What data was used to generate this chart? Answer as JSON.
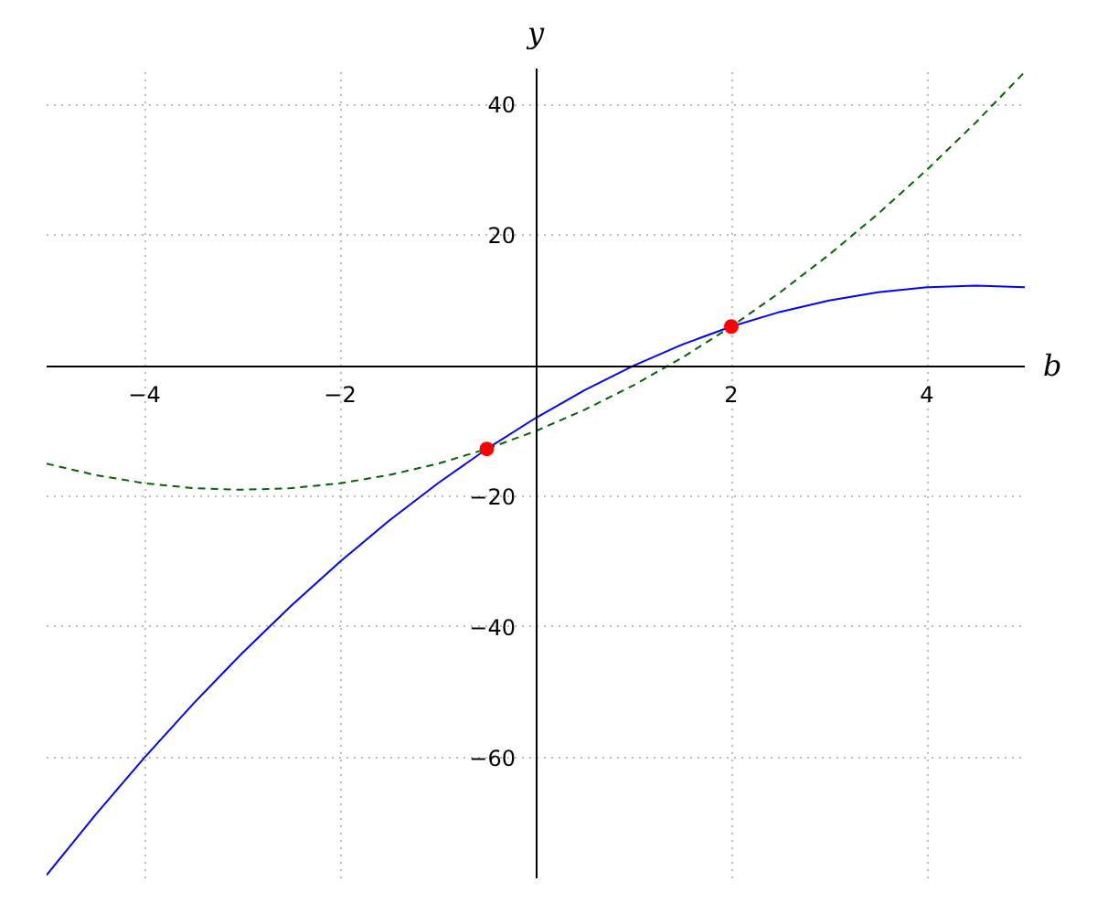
{
  "chart_data": {
    "type": "line",
    "xlabel": "b",
    "ylabel": "y",
    "xlim": [
      -5,
      5
    ],
    "ylim": [
      -78.5,
      45.5
    ],
    "xticks": [
      -4,
      -2,
      2,
      4
    ],
    "yticks": [
      -60,
      -40,
      -20,
      20,
      40
    ],
    "grid": true,
    "series": [
      {
        "color": "#0000ff",
        "line_style": "solid",
        "marker": "none",
        "x": [
          -5,
          -4.5,
          -4,
          -3.5,
          -3,
          -2.5,
          -2,
          -1.5,
          -1,
          -0.5,
          0,
          0.5,
          1,
          1.5,
          2,
          2.5,
          3,
          3.5,
          4,
          4.5,
          5
        ],
        "values": [
          -78,
          -68.75,
          -60,
          -51.75,
          -44,
          -36.75,
          -30,
          -23.75,
          -18,
          -12.75,
          -8,
          -3.75,
          0,
          3.25,
          6,
          8.25,
          10,
          11.25,
          12,
          12.25,
          12
        ]
      },
      {
        "color": "#006400",
        "line_style": "dashed",
        "marker": "none",
        "x": [
          -5,
          -4.5,
          -4,
          -3.5,
          -3,
          -2.5,
          -2,
          -1.5,
          -1,
          -0.5,
          0,
          0.5,
          1,
          1.5,
          2,
          2.5,
          3,
          3.5,
          4,
          4.5,
          5
        ],
        "values": [
          -15,
          -16.75,
          -18,
          -18.75,
          -19,
          -18.75,
          -18,
          -16.75,
          -15,
          -12.75,
          -10,
          -6.75,
          -3,
          1.25,
          6,
          11.25,
          17,
          23.25,
          30,
          37.25,
          45
        ]
      },
      {
        "type": "scatter",
        "color": "#ff0000",
        "marker": "circle",
        "x": [
          -0.5,
          2
        ],
        "values": [
          -12.75,
          6
        ]
      }
    ]
  }
}
